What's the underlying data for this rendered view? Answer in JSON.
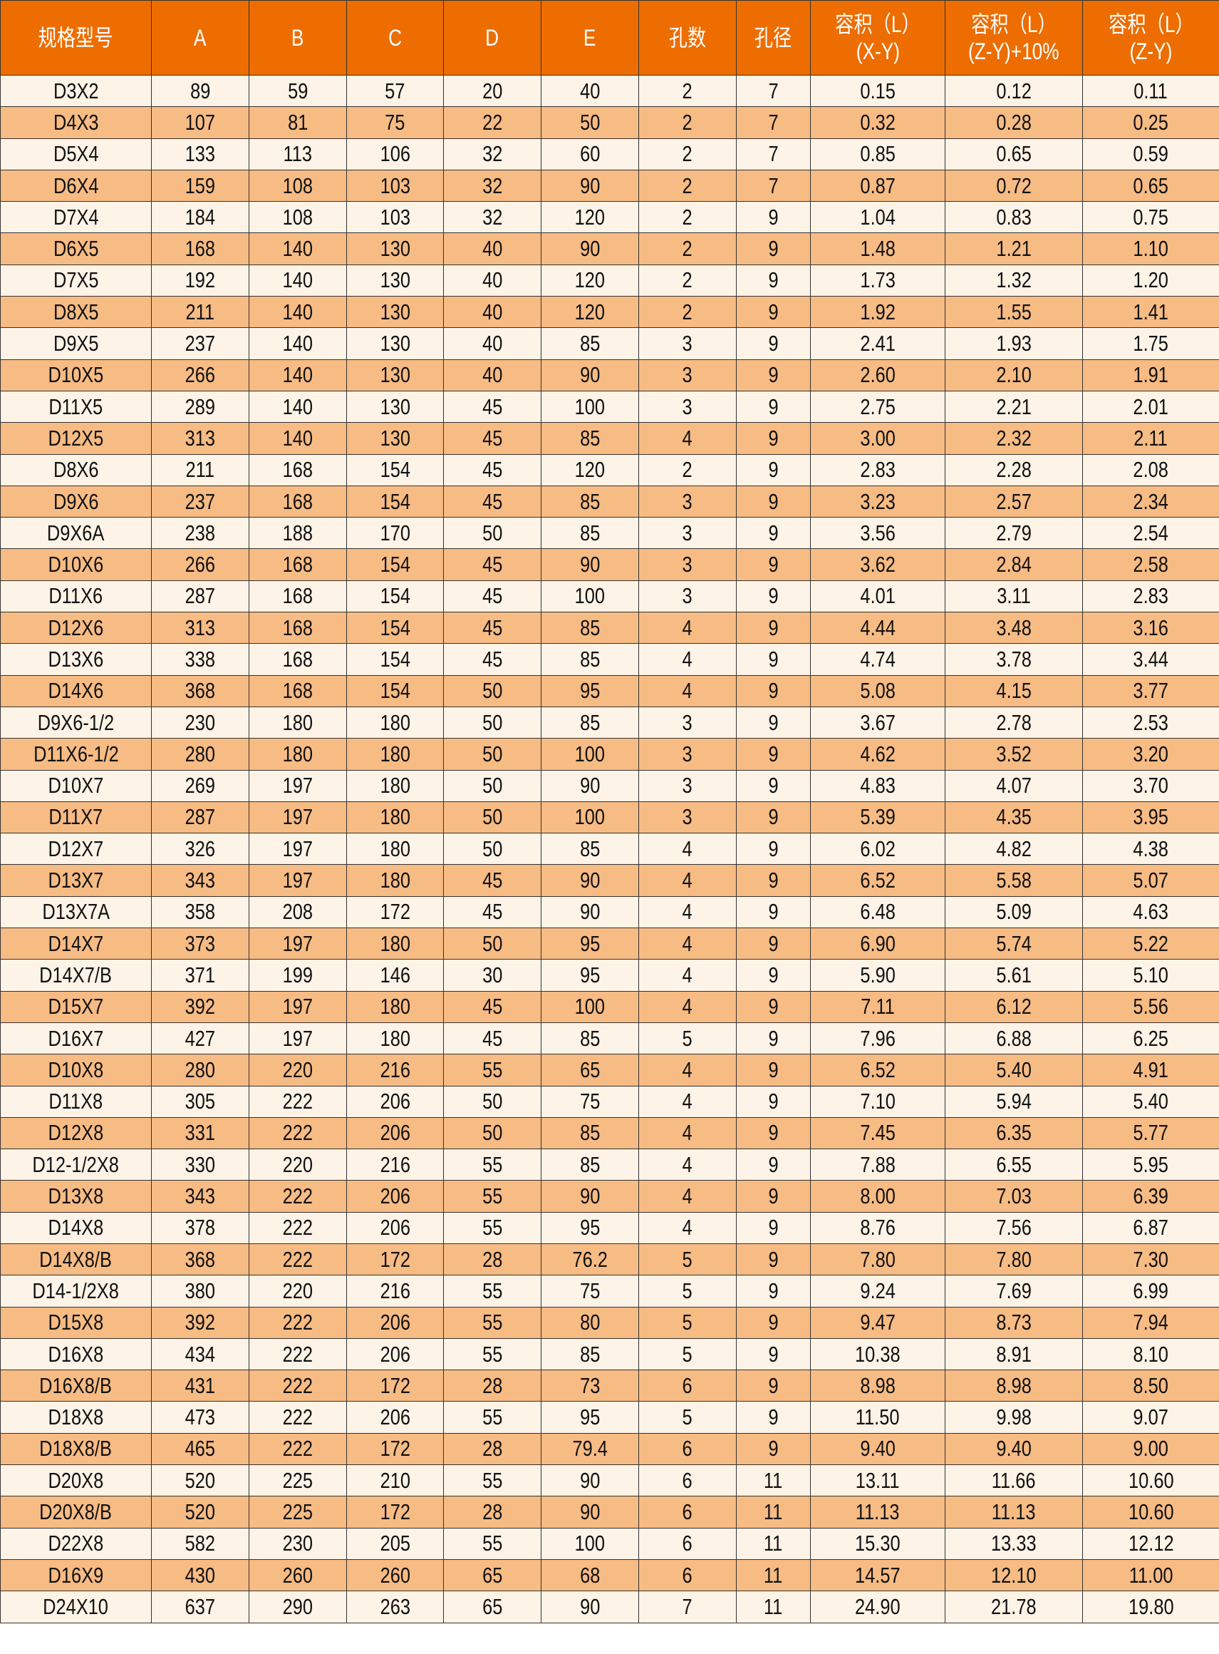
{
  "colors": {
    "header": "#ED6D00",
    "row_light": "#FDF3E7",
    "row_dark": "#F7BB84"
  },
  "headers": [
    "规格型号",
    "A",
    "B",
    "C",
    "D",
    "E",
    "孔数",
    "孔径",
    [
      "容积（L）",
      "(X-Y)"
    ],
    [
      "容积（L）",
      "(Z-Y)+10%"
    ],
    [
      "容积（L）",
      "(Z-Y)"
    ]
  ],
  "rows": [
    [
      "D3X2",
      "89",
      "59",
      "57",
      "20",
      "40",
      "2",
      "7",
      "0.15",
      "0.12",
      "0.11"
    ],
    [
      "D4X3",
      "107",
      "81",
      "75",
      "22",
      "50",
      "2",
      "7",
      "0.32",
      "0.28",
      "0.25"
    ],
    [
      "D5X4",
      "133",
      "113",
      "106",
      "32",
      "60",
      "2",
      "7",
      "0.85",
      "0.65",
      "0.59"
    ],
    [
      "D6X4",
      "159",
      "108",
      "103",
      "32",
      "90",
      "2",
      "7",
      "0.87",
      "0.72",
      "0.65"
    ],
    [
      "D7X4",
      "184",
      "108",
      "103",
      "32",
      "120",
      "2",
      "9",
      "1.04",
      "0.83",
      "0.75"
    ],
    [
      "D6X5",
      "168",
      "140",
      "130",
      "40",
      "90",
      "2",
      "9",
      "1.48",
      "1.21",
      "1.10"
    ],
    [
      "D7X5",
      "192",
      "140",
      "130",
      "40",
      "120",
      "2",
      "9",
      "1.73",
      "1.32",
      "1.20"
    ],
    [
      "D8X5",
      "211",
      "140",
      "130",
      "40",
      "120",
      "2",
      "9",
      "1.92",
      "1.55",
      "1.41"
    ],
    [
      "D9X5",
      "237",
      "140",
      "130",
      "40",
      "85",
      "3",
      "9",
      "2.41",
      "1.93",
      "1.75"
    ],
    [
      "D10X5",
      "266",
      "140",
      "130",
      "40",
      "90",
      "3",
      "9",
      "2.60",
      "2.10",
      "1.91"
    ],
    [
      "D11X5",
      "289",
      "140",
      "130",
      "45",
      "100",
      "3",
      "9",
      "2.75",
      "2.21",
      "2.01"
    ],
    [
      "D12X5",
      "313",
      "140",
      "130",
      "45",
      "85",
      "4",
      "9",
      "3.00",
      "2.32",
      "2.11"
    ],
    [
      "D8X6",
      "211",
      "168",
      "154",
      "45",
      "120",
      "2",
      "9",
      "2.83",
      "2.28",
      "2.08"
    ],
    [
      "D9X6",
      "237",
      "168",
      "154",
      "45",
      "85",
      "3",
      "9",
      "3.23",
      "2.57",
      "2.34"
    ],
    [
      "D9X6A",
      "238",
      "188",
      "170",
      "50",
      "85",
      "3",
      "9",
      "3.56",
      "2.79",
      "2.54"
    ],
    [
      "D10X6",
      "266",
      "168",
      "154",
      "45",
      "90",
      "3",
      "9",
      "3.62",
      "2.84",
      "2.58"
    ],
    [
      "D11X6",
      "287",
      "168",
      "154",
      "45",
      "100",
      "3",
      "9",
      "4.01",
      "3.11",
      "2.83"
    ],
    [
      "D12X6",
      "313",
      "168",
      "154",
      "45",
      "85",
      "4",
      "9",
      "4.44",
      "3.48",
      "3.16"
    ],
    [
      "D13X6",
      "338",
      "168",
      "154",
      "45",
      "85",
      "4",
      "9",
      "4.74",
      "3.78",
      "3.44"
    ],
    [
      "D14X6",
      "368",
      "168",
      "154",
      "50",
      "95",
      "4",
      "9",
      "5.08",
      "4.15",
      "3.77"
    ],
    [
      "D9X6-1/2",
      "230",
      "180",
      "180",
      "50",
      "85",
      "3",
      "9",
      "3.67",
      "2.78",
      "2.53"
    ],
    [
      "D11X6-1/2",
      "280",
      "180",
      "180",
      "50",
      "100",
      "3",
      "9",
      "4.62",
      "3.52",
      "3.20"
    ],
    [
      "D10X7",
      "269",
      "197",
      "180",
      "50",
      "90",
      "3",
      "9",
      "4.83",
      "4.07",
      "3.70"
    ],
    [
      "D11X7",
      "287",
      "197",
      "180",
      "50",
      "100",
      "3",
      "9",
      "5.39",
      "4.35",
      "3.95"
    ],
    [
      "D12X7",
      "326",
      "197",
      "180",
      "50",
      "85",
      "4",
      "9",
      "6.02",
      "4.82",
      "4.38"
    ],
    [
      "D13X7",
      "343",
      "197",
      "180",
      "45",
      "90",
      "4",
      "9",
      "6.52",
      "5.58",
      "5.07"
    ],
    [
      "D13X7A",
      "358",
      "208",
      "172",
      "45",
      "90",
      "4",
      "9",
      "6.48",
      "5.09",
      "4.63"
    ],
    [
      "D14X7",
      "373",
      "197",
      "180",
      "50",
      "95",
      "4",
      "9",
      "6.90",
      "5.74",
      "5.22"
    ],
    [
      "D14X7/B",
      "371",
      "199",
      "146",
      "30",
      "95",
      "4",
      "9",
      "5.90",
      "5.61",
      "5.10"
    ],
    [
      "D15X7",
      "392",
      "197",
      "180",
      "45",
      "100",
      "4",
      "9",
      "7.11",
      "6.12",
      "5.56"
    ],
    [
      "D16X7",
      "427",
      "197",
      "180",
      "45",
      "85",
      "5",
      "9",
      "7.96",
      "6.88",
      "6.25"
    ],
    [
      "D10X8",
      "280",
      "220",
      "216",
      "55",
      "65",
      "4",
      "9",
      "6.52",
      "5.40",
      "4.91"
    ],
    [
      "D11X8",
      "305",
      "222",
      "206",
      "50",
      "75",
      "4",
      "9",
      "7.10",
      "5.94",
      "5.40"
    ],
    [
      "D12X8",
      "331",
      "222",
      "206",
      "50",
      "85",
      "4",
      "9",
      "7.45",
      "6.35",
      "5.77"
    ],
    [
      "D12-1/2X8",
      "330",
      "220",
      "216",
      "55",
      "85",
      "4",
      "9",
      "7.88",
      "6.55",
      "5.95"
    ],
    [
      "D13X8",
      "343",
      "222",
      "206",
      "55",
      "90",
      "4",
      "9",
      "8.00",
      "7.03",
      "6.39"
    ],
    [
      "D14X8",
      "378",
      "222",
      "206",
      "55",
      "95",
      "4",
      "9",
      "8.76",
      "7.56",
      "6.87"
    ],
    [
      "D14X8/B",
      "368",
      "222",
      "172",
      "28",
      "76.2",
      "5",
      "9",
      "7.80",
      "7.80",
      "7.30"
    ],
    [
      "D14-1/2X8",
      "380",
      "220",
      "216",
      "55",
      "75",
      "5",
      "9",
      "9.24",
      "7.69",
      "6.99"
    ],
    [
      "D15X8",
      "392",
      "222",
      "206",
      "55",
      "80",
      "5",
      "9",
      "9.47",
      "8.73",
      "7.94"
    ],
    [
      "D16X8",
      "434",
      "222",
      "206",
      "55",
      "85",
      "5",
      "9",
      "10.38",
      "8.91",
      "8.10"
    ],
    [
      "D16X8/B",
      "431",
      "222",
      "172",
      "28",
      "73",
      "6",
      "9",
      "8.98",
      "8.98",
      "8.50"
    ],
    [
      "D18X8",
      "473",
      "222",
      "206",
      "55",
      "95",
      "5",
      "9",
      "11.50",
      "9.98",
      "9.07"
    ],
    [
      "D18X8/B",
      "465",
      "222",
      "172",
      "28",
      "79.4",
      "6",
      "9",
      "9.40",
      "9.40",
      "9.00"
    ],
    [
      "D20X8",
      "520",
      "225",
      "210",
      "55",
      "90",
      "6",
      "11",
      "13.11",
      "11.66",
      "10.60"
    ],
    [
      "D20X8/B",
      "520",
      "225",
      "172",
      "28",
      "90",
      "6",
      "11",
      "11.13",
      "11.13",
      "10.60"
    ],
    [
      "D22X8",
      "582",
      "230",
      "205",
      "55",
      "100",
      "6",
      "11",
      "15.30",
      "13.33",
      "12.12"
    ],
    [
      "D16X9",
      "430",
      "260",
      "260",
      "65",
      "68",
      "6",
      "11",
      "14.57",
      "12.10",
      "11.00"
    ],
    [
      "D24X10",
      "637",
      "290",
      "263",
      "65",
      "90",
      "7",
      "11",
      "24.90",
      "21.78",
      "19.80"
    ]
  ]
}
